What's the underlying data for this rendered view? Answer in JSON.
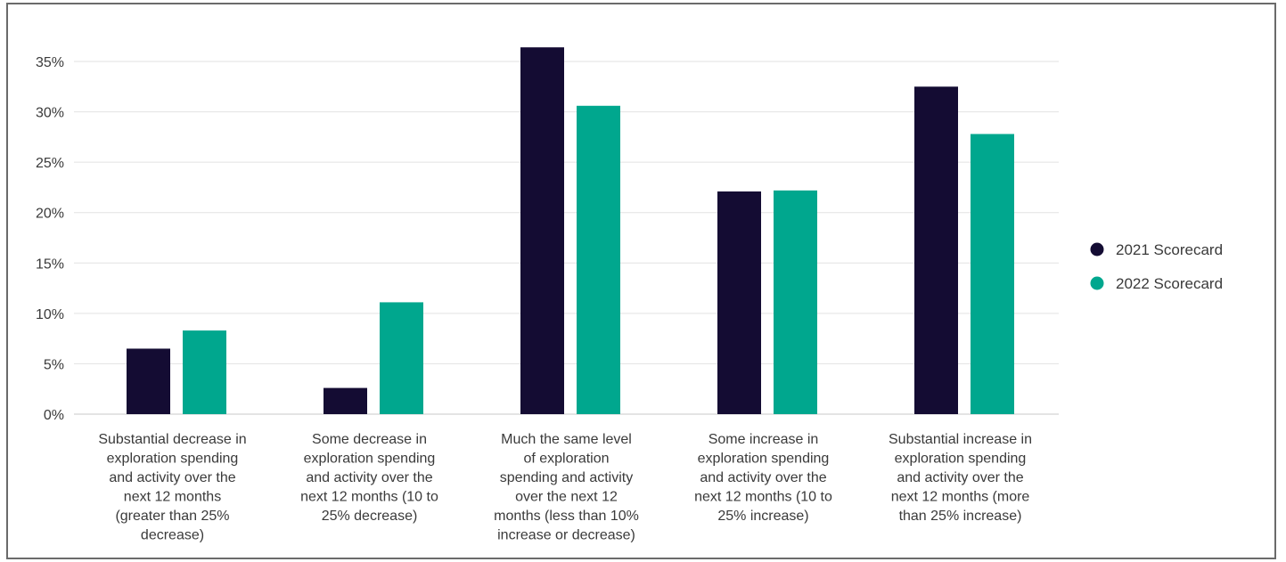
{
  "chart_data": {
    "type": "bar",
    "categories": [
      [
        "Substantial decrease in",
        "exploration spending",
        "and activity over the",
        "next 12 months",
        "(greater than 25%",
        "decrease)"
      ],
      [
        "Some decrease in",
        "exploration spending",
        "and activity over the",
        "next 12 months (10 to",
        "25% decrease)"
      ],
      [
        "Much the same level",
        "of exploration",
        "spending and activity",
        "over the next 12",
        "months (less than 10%",
        "increase or decrease)"
      ],
      [
        "Some increase in",
        "exploration spending",
        "and activity over the",
        "next 12 months (10 to",
        "25% increase)"
      ],
      [
        "Substantial increase in",
        "exploration spending",
        "and activity over the",
        "next 12 months (more",
        "than 25% increase)"
      ]
    ],
    "series": [
      {
        "name": "2021 Scorecard",
        "color": "#140c33",
        "values": [
          6.5,
          2.6,
          36.4,
          22.1,
          32.5
        ]
      },
      {
        "name": "2022 Scorecard",
        "color": "#00a78e",
        "values": [
          8.3,
          11.1,
          30.6,
          22.2,
          27.8
        ]
      }
    ],
    "yticks": [
      "0%",
      "5%",
      "10%",
      "15%",
      "20%",
      "25%",
      "30%",
      "35%"
    ],
    "ylim": [
      0,
      35
    ],
    "title": "",
    "xlabel": "",
    "ylabel": "",
    "grid": true,
    "legend": "right"
  }
}
